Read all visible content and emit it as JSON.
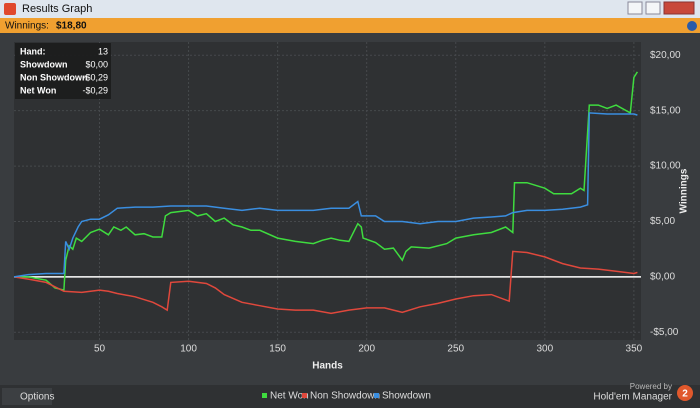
{
  "window": {
    "title": "Results Graph",
    "winnings_label": "Winnings:",
    "winnings_value": "$18,80",
    "options": "Options",
    "powered_by": "Powered by",
    "brand": "Hold'em Manager",
    "brand_badge": "2"
  },
  "tooltip": {
    "rows": [
      [
        "Hand:",
        "13"
      ],
      [
        "Showdown",
        "$0,00"
      ],
      [
        "Non Showdown",
        "-$0,29"
      ],
      [
        "Net Won",
        "-$0,29"
      ]
    ]
  },
  "chart_data": {
    "type": "line",
    "x_label": "Hands",
    "y_label": "Winnings",
    "xlim": [
      2,
      354
    ],
    "xticks": [
      50,
      100,
      150,
      200,
      250,
      300,
      350
    ],
    "ylim": [
      -5.7,
      21.2
    ],
    "yticks": [
      {
        "value": -5,
        "label": "-$5,00"
      },
      {
        "value": 0,
        "label": "$0,00"
      },
      {
        "value": 5,
        "label": "$5,00"
      },
      {
        "value": 10,
        "label": "$10,00"
      },
      {
        "value": 15,
        "label": "$15,00"
      },
      {
        "value": 20,
        "label": "$20,00"
      }
    ],
    "grid": true,
    "series": [
      {
        "name": "Net Won",
        "color": "#3fdc3f",
        "x": [
          2,
          10,
          20,
          25,
          30,
          31,
          33,
          35,
          37,
          40,
          45,
          50,
          55,
          58,
          62,
          65,
          70,
          75,
          80,
          85,
          87,
          90,
          95,
          100,
          105,
          110,
          115,
          120,
          125,
          130,
          135,
          140,
          150,
          160,
          170,
          175,
          180,
          185,
          190,
          195,
          197,
          198,
          205,
          210,
          215,
          220,
          222,
          225,
          235,
          245,
          250,
          260,
          270,
          278,
          282,
          283,
          290,
          300,
          305,
          315,
          320,
          322,
          325,
          330,
          335,
          340,
          348,
          350,
          352
        ],
        "values": [
          0,
          0,
          -0.3,
          -1,
          -1.2,
          1.5,
          2.8,
          2.5,
          3.5,
          3.2,
          4,
          4.3,
          3.8,
          4.5,
          4.2,
          4.5,
          3.8,
          3.9,
          3.6,
          3.6,
          5.5,
          5.8,
          5.9,
          6,
          5.5,
          5.7,
          5,
          5.3,
          4.7,
          4.5,
          4.2,
          4.2,
          3.5,
          3.2,
          3,
          3.3,
          3.5,
          3.3,
          3.2,
          4.8,
          4.5,
          3.5,
          3.1,
          2.5,
          2.6,
          1.5,
          2.3,
          2.7,
          2.6,
          3,
          3.5,
          3.8,
          4,
          4.5,
          4,
          8.5,
          8.5,
          8,
          7.5,
          7.5,
          8,
          7.8,
          15.5,
          15.5,
          15.2,
          15.5,
          14.8,
          18,
          18.5
        ]
      },
      {
        "name": "Non Showdown",
        "color": "#e0483c",
        "x": [
          2,
          10,
          20,
          30,
          40,
          50,
          55,
          60,
          70,
          80,
          85,
          88,
          90,
          100,
          110,
          115,
          120,
          130,
          140,
          150,
          160,
          170,
          180,
          190,
          200,
          210,
          220,
          230,
          240,
          250,
          260,
          270,
          280,
          282,
          290,
          300,
          310,
          320,
          330,
          340,
          350,
          352
        ],
        "values": [
          0,
          -0.2,
          -0.5,
          -1.3,
          -1.4,
          -1.2,
          -1.3,
          -1.5,
          -1.8,
          -2.3,
          -2.7,
          -3,
          -0.5,
          -0.4,
          -0.6,
          -1,
          -1.6,
          -2.3,
          -2.6,
          -2.9,
          -3,
          -3,
          -3.3,
          -3,
          -2.8,
          -2.8,
          -3.2,
          -2.7,
          -2.4,
          -2,
          -1.7,
          -1.6,
          -2.2,
          2.3,
          2.2,
          1.8,
          1.2,
          0.8,
          0.7,
          0.5,
          0.3,
          0.4
        ]
      },
      {
        "name": "Showdown",
        "color": "#3a8ee0",
        "x": [
          2,
          10,
          20,
          30,
          31,
          33,
          35,
          38,
          40,
          45,
          50,
          55,
          60,
          70,
          80,
          90,
          100,
          110,
          120,
          130,
          140,
          150,
          160,
          170,
          180,
          190,
          195,
          197,
          205,
          210,
          220,
          230,
          240,
          250,
          260,
          270,
          278,
          282,
          290,
          300,
          310,
          320,
          324,
          325,
          335,
          350,
          352
        ],
        "values": [
          0,
          0.2,
          0.3,
          0.3,
          3.2,
          2.5,
          3.5,
          4.5,
          5,
          5.2,
          5.2,
          5.6,
          6.2,
          6.3,
          6.3,
          6.4,
          6.4,
          6.4,
          6.2,
          6,
          6.2,
          6,
          6,
          6,
          6.2,
          6.2,
          6.8,
          5.5,
          5.5,
          5,
          5,
          4.8,
          5,
          5,
          5.3,
          5.4,
          5.5,
          5.8,
          6,
          6,
          6.1,
          6.3,
          6.5,
          14.8,
          14.7,
          14.7,
          14.6
        ]
      }
    ]
  }
}
